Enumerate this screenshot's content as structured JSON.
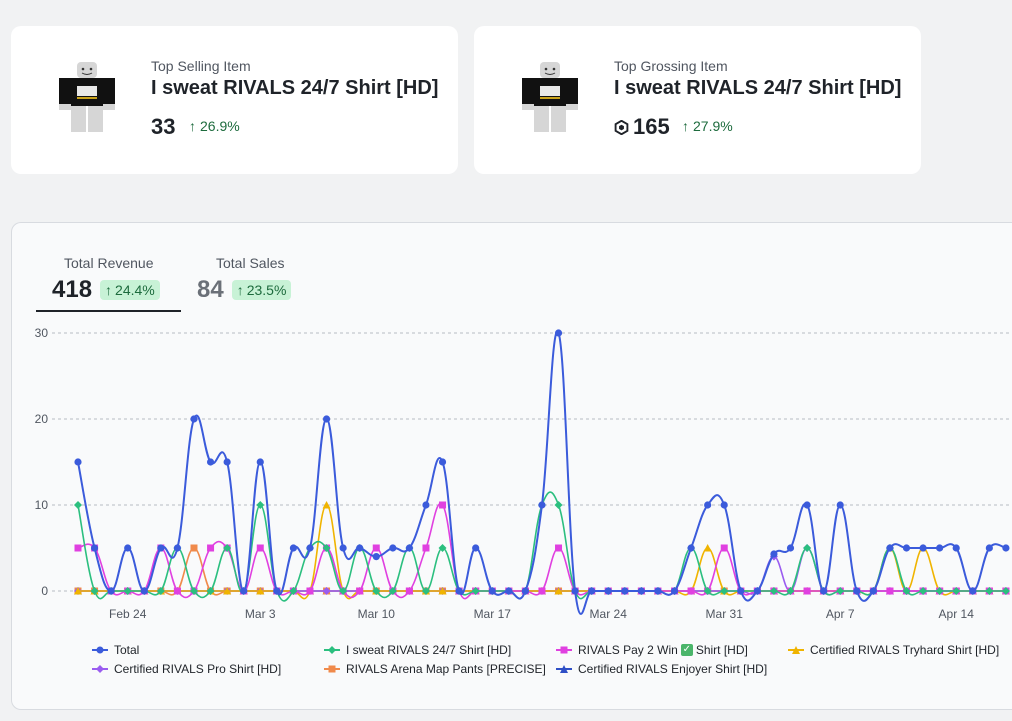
{
  "cards": {
    "top_selling": {
      "label": "Top Selling Item",
      "title": "I sweat RIVALS 24/7 Shirt [HD]",
      "value": "33",
      "change": "26.9%"
    },
    "top_grossing": {
      "label": "Top Grossing Item",
      "title": "I sweat RIVALS 24/7 Shirt [HD]",
      "value": "165",
      "change": "27.9%"
    }
  },
  "tabs": {
    "revenue": {
      "label": "Total Revenue",
      "value": "418",
      "change": "24.4%"
    },
    "sales": {
      "label": "Total Sales",
      "value": "84",
      "change": "23.5%"
    }
  },
  "colors": {
    "total": "#3b5bdb",
    "i_sweat": "#2bbf7f",
    "pay2win": "#e040e0",
    "tryhard": "#f0b400",
    "pro": "#9a5cf0",
    "pants": "#f08a4b",
    "enjoyer": "#2f4fc6",
    "change_green": "#1d6b3d"
  },
  "chart_data": {
    "type": "line",
    "x": [
      "Feb 21",
      "Feb 22",
      "Feb 23",
      "Feb 24",
      "Feb 25",
      "Feb 26",
      "Feb 27",
      "Feb 28",
      "Feb 29",
      "Mar 1",
      "Mar 2",
      "Mar 3",
      "Mar 4",
      "Mar 5",
      "Mar 6",
      "Mar 7",
      "Mar 8",
      "Mar 9",
      "Mar 10",
      "Mar 11",
      "Mar 12",
      "Mar 13",
      "Mar 14",
      "Mar 15",
      "Mar 16",
      "Mar 17",
      "Mar 18",
      "Mar 19",
      "Mar 20",
      "Mar 21",
      "Mar 22",
      "Mar 23",
      "Mar 24",
      "Mar 25",
      "Mar 26",
      "Mar 27",
      "Mar 28",
      "Mar 29",
      "Mar 30",
      "Mar 31",
      "Apr 1",
      "Apr 2",
      "Apr 3",
      "Apr 4",
      "Apr 5",
      "Apr 6",
      "Apr 7",
      "Apr 8",
      "Apr 9",
      "Apr 10",
      "Apr 11",
      "Apr 12",
      "Apr 13",
      "Apr 14",
      "Apr 15",
      "Apr 16",
      "Apr 17",
      "Apr 18",
      "Apr 19"
    ],
    "x_ticks": [
      "Feb 24",
      "Mar 3",
      "Mar 10",
      "Mar 17",
      "Mar 24",
      "Mar 31",
      "Apr 7",
      "Apr 14"
    ],
    "y_ticks": [
      0,
      10,
      20,
      30
    ],
    "ylim": [
      0,
      30
    ],
    "grid": "horizontal dashed",
    "legend_position": "bottom",
    "series": [
      {
        "name": "Total",
        "key": "total",
        "marker": "circle",
        "values": [
          15,
          5,
          0,
          5,
          0,
          5,
          5,
          20,
          15,
          15,
          0,
          15,
          0,
          5,
          5,
          20,
          5,
          5,
          4,
          5,
          5,
          10,
          15,
          0,
          5,
          0,
          0,
          0,
          10,
          30,
          0,
          0,
          0,
          0,
          0,
          0,
          0,
          5,
          10,
          10,
          0,
          0,
          4.3,
          5,
          10,
          0,
          10,
          0,
          0,
          5,
          5,
          5,
          5,
          5,
          0,
          5,
          5,
          5,
          5
        ]
      },
      {
        "name": "I sweat RIVALS 24/7 Shirt [HD]",
        "key": "i_sweat",
        "marker": "diamond",
        "values": [
          10,
          0,
          0,
          0,
          0,
          0,
          5,
          0,
          0,
          5,
          0,
          10,
          0,
          0,
          5,
          5,
          0,
          5,
          0,
          0,
          5,
          0,
          5,
          0,
          0,
          0,
          0,
          0,
          10,
          10,
          0,
          0,
          0,
          0,
          0,
          0,
          0,
          5,
          0,
          0,
          0,
          0,
          0,
          0,
          5,
          0,
          0,
          0,
          0,
          5,
          0,
          0,
          0,
          0,
          0,
          0,
          0,
          5,
          0
        ]
      },
      {
        "name": "RIVALS Pay 2 Win",
        "key": "pay2win",
        "marker": "square",
        "checked_suffix": "Shirt [HD]",
        "values": [
          5,
          5,
          0,
          0,
          0,
          5,
          0,
          0,
          5,
          5,
          0,
          5,
          0,
          0,
          0,
          5,
          0,
          0,
          5,
          0,
          0,
          5,
          10,
          0,
          0,
          0,
          0,
          0,
          0,
          5,
          0,
          0,
          0,
          0,
          0,
          0,
          0,
          0,
          0,
          5,
          0,
          0,
          0,
          0,
          0,
          0,
          0,
          0,
          0,
          0,
          0,
          0,
          0,
          0,
          0,
          0,
          0,
          5,
          0
        ]
      },
      {
        "name": "Certified RIVALS Tryhard Shirt [HD]",
        "key": "tryhard",
        "marker": "triangle",
        "values": [
          0,
          0,
          0,
          0,
          0,
          0,
          0,
          0,
          0,
          0,
          0,
          0,
          0,
          0,
          0,
          10,
          0,
          0,
          0,
          0,
          0,
          0,
          0,
          0,
          0,
          0,
          0,
          0,
          0,
          0,
          0,
          0,
          0,
          0,
          0,
          0,
          0,
          0,
          5,
          0,
          0,
          0,
          0,
          0,
          0,
          0,
          0,
          0,
          0,
          5,
          0,
          5,
          0,
          0,
          0,
          0,
          0,
          5,
          5
        ]
      },
      {
        "name": "Certified RIVALS Pro Shirt [HD]",
        "key": "pro",
        "marker": "diamond",
        "values": [
          0,
          0,
          0,
          0,
          0,
          0,
          0,
          0,
          0,
          0,
          0,
          0,
          0,
          0,
          0,
          0,
          0,
          0,
          0,
          0,
          0,
          0,
          0,
          0,
          0,
          0,
          0,
          0,
          0,
          0,
          0,
          0,
          0,
          0,
          0,
          0,
          0,
          0,
          0,
          0,
          0,
          0,
          4,
          0,
          5,
          0,
          0,
          0,
          0,
          0,
          0,
          0,
          0,
          0,
          0,
          0,
          0,
          0,
          0
        ]
      },
      {
        "name": "RIVALS Arena Map Pants [PRECISE]",
        "key": "pants",
        "marker": "square",
        "values": [
          0,
          0,
          0,
          0,
          0,
          0,
          0,
          5,
          0,
          0,
          0,
          0,
          0,
          0,
          0,
          0,
          0,
          0,
          0,
          0,
          0,
          0,
          0,
          0,
          0,
          0,
          0,
          0,
          0,
          0,
          0,
          0,
          0,
          0,
          0,
          0,
          0,
          0,
          0,
          0,
          0,
          0,
          0,
          0,
          0,
          0,
          0,
          0,
          0,
          0,
          0,
          0,
          0,
          0,
          0,
          0,
          0,
          0,
          0
        ]
      },
      {
        "name": "Certified RIVALS Enjoyer Shirt [HD]",
        "key": "enjoyer",
        "marker": "triangle",
        "values": [
          0,
          0,
          0,
          0,
          0,
          0,
          0,
          0,
          0,
          0,
          0,
          0,
          0,
          0,
          0,
          0,
          0,
          0,
          0,
          0,
          0,
          0,
          0,
          0,
          0,
          0,
          0,
          0,
          0,
          0,
          0,
          0,
          0,
          0,
          0,
          0,
          0,
          0,
          0,
          0,
          0,
          0,
          0,
          0,
          0,
          0,
          0,
          0,
          0,
          0,
          0,
          0,
          0,
          0,
          0,
          0,
          0,
          0,
          0
        ]
      }
    ]
  }
}
